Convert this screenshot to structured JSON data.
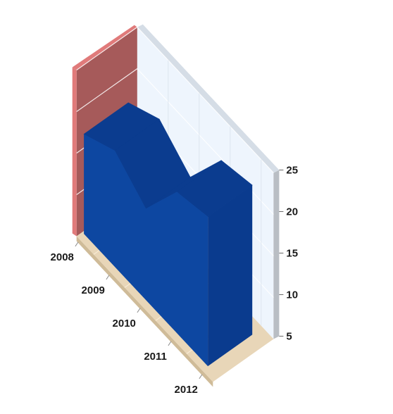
{
  "chart_data": {
    "type": "area",
    "projection": "3d",
    "title": "",
    "xlabel": "",
    "ylabel": "",
    "categories": [
      "2008",
      "2009",
      "2010",
      "2011",
      "2012"
    ],
    "series": [
      {
        "values": [
          17,
          19,
          16,
          22,
          23
        ],
        "color": "#0d47a1"
      }
    ],
    "ylim": [
      5,
      25
    ],
    "y_ticks": [
      5,
      10,
      15,
      20,
      25
    ],
    "grid": true,
    "legend": "none"
  },
  "colors": {
    "back_wall": "#eef5fd",
    "back_wall_edge": "#d5dde6",
    "side_wall": "#a65a5a",
    "side_wall_edge": "#e07a7a",
    "floor": "#e8d6b8",
    "floor_edge": "#f5e3c4",
    "series_front": "#0d47a1",
    "series_top": "#0b3c8f",
    "series_side": "#0a3b8e"
  }
}
